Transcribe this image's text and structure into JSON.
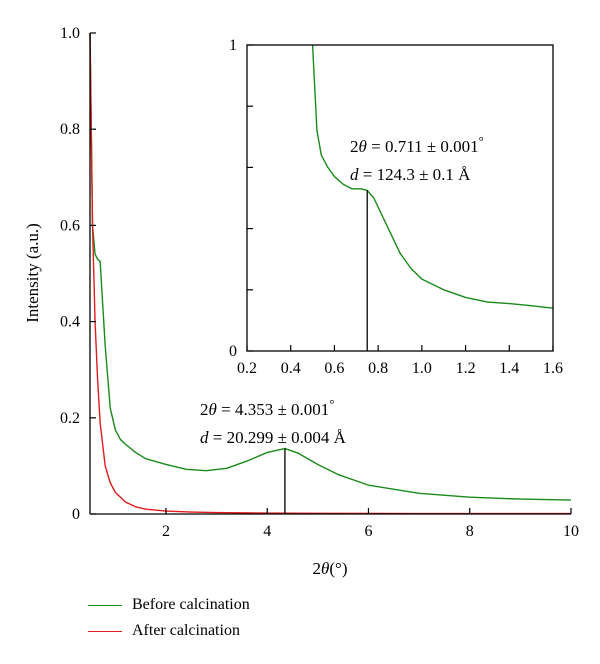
{
  "chart_data": [
    {
      "id": "main",
      "type": "line",
      "xlabel_var": "2θ",
      "xlabel_unit": "(°)",
      "ylabel": "Intensity (a.u.)",
      "xlim": [
        0.5,
        10
      ],
      "ylim": [
        0,
        1.0
      ],
      "xticks": [
        2,
        4,
        6,
        8,
        10
      ],
      "yticks": [
        0,
        0.2,
        0.4,
        0.6,
        0.8,
        1.0
      ],
      "xtick_labels": [
        "2",
        "4",
        "6",
        "8",
        "10"
      ],
      "ytick_labels": [
        "0",
        "0.2",
        "0.4",
        "0.6",
        "0.8",
        "1.0"
      ],
      "series": [
        {
          "name": "Before calcination",
          "color": "#1a8a1a",
          "x": [
            0.5,
            0.55,
            0.6,
            0.65,
            0.7,
            0.8,
            0.9,
            1.0,
            1.1,
            1.2,
            1.4,
            1.6,
            2.0,
            2.4,
            2.8,
            3.2,
            3.6,
            4.0,
            4.35,
            4.6,
            5.0,
            5.4,
            6.0,
            7.0,
            8.0,
            9.0,
            10.0
          ],
          "y": [
            1.0,
            0.6,
            0.54,
            0.53,
            0.525,
            0.35,
            0.22,
            0.175,
            0.155,
            0.145,
            0.128,
            0.115,
            0.103,
            0.093,
            0.09,
            0.095,
            0.11,
            0.128,
            0.136,
            0.127,
            0.103,
            0.082,
            0.06,
            0.043,
            0.035,
            0.031,
            0.029
          ]
        },
        {
          "name": "After calcination",
          "color": "#e21c1c",
          "x": [
            0.5,
            0.55,
            0.6,
            0.65,
            0.7,
            0.8,
            0.9,
            1.0,
            1.2,
            1.4,
            1.6,
            2.0,
            2.5,
            3.0,
            4.0,
            5.0,
            7.0,
            10.0
          ],
          "y": [
            1.0,
            0.6,
            0.4,
            0.28,
            0.19,
            0.1,
            0.065,
            0.045,
            0.025,
            0.015,
            0.01,
            0.006,
            0.004,
            0.003,
            0.002,
            0.0015,
            0.001,
            0.001
          ]
        }
      ],
      "peak_marker": {
        "x": 4.35,
        "y": 0.136
      },
      "annotation": {
        "line1": {
          "var": "2θ",
          "eq": "= 4.353 ± 0.001",
          "unit": "°"
        },
        "line2": {
          "var": "d",
          "eq": "= 20.299 ± 0.004 Å"
        }
      }
    },
    {
      "id": "inset",
      "type": "line",
      "xlim": [
        0.2,
        1.6
      ],
      "ylim": [
        0,
        1
      ],
      "xticks": [
        0.2,
        0.4,
        0.6,
        0.8,
        1.0,
        1.2,
        1.4,
        1.6
      ],
      "xtick_labels": [
        "0.2",
        "0.4",
        "0.6",
        "0.8",
        "1.0",
        "1.2",
        "1.4",
        "1.6"
      ],
      "yticks": [
        0,
        1
      ],
      "ytick_labels": [
        "0",
        "1"
      ],
      "series": [
        {
          "name": "Before calcination",
          "color": "#1a8a1a",
          "x": [
            0.5,
            0.52,
            0.54,
            0.57,
            0.6,
            0.64,
            0.68,
            0.72,
            0.75,
            0.78,
            0.82,
            0.86,
            0.9,
            0.95,
            1.0,
            1.1,
            1.2,
            1.3,
            1.4,
            1.5,
            1.6
          ],
          "y": [
            1.0,
            0.72,
            0.64,
            0.6,
            0.57,
            0.545,
            0.53,
            0.53,
            0.525,
            0.5,
            0.44,
            0.38,
            0.32,
            0.27,
            0.235,
            0.2,
            0.175,
            0.16,
            0.155,
            0.148,
            0.14
          ]
        }
      ],
      "peak_marker": {
        "x": 0.75,
        "y": 0.525
      },
      "annotation": {
        "line1": {
          "var": "2θ",
          "eq": "= 0.711 ± 0.001",
          "unit": "°"
        },
        "line2": {
          "var": "d",
          "eq": "= 124.3 ± 0.1 Å"
        }
      }
    }
  ],
  "legend": {
    "items": [
      {
        "label": "Before calcination",
        "color": "#1a8a1a"
      },
      {
        "label": "After calcination",
        "color": "#e21c1c"
      }
    ]
  }
}
